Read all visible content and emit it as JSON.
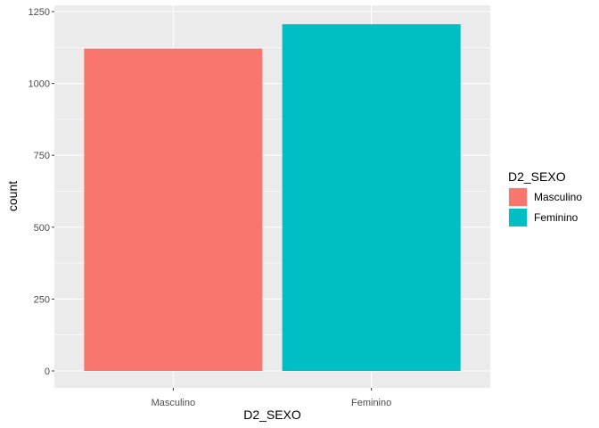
{
  "chart_data": {
    "type": "bar",
    "categories": [
      "Masculino",
      "Feminino"
    ],
    "values": [
      1121,
      1206
    ],
    "xlabel": "D2_SEXO",
    "ylabel": "count",
    "ylim": [
      0,
      1250
    ],
    "yticks": [
      0,
      250,
      500,
      750,
      1000,
      1250
    ],
    "grid": true,
    "legend": {
      "title": "D2_SEXO",
      "position": "right",
      "entries": [
        "Masculino",
        "Feminino"
      ]
    },
    "colors": [
      "#F8766D",
      "#00BFC4"
    ],
    "panel_background": "#EBEBEB",
    "grid_color": "#FFFFFF"
  }
}
